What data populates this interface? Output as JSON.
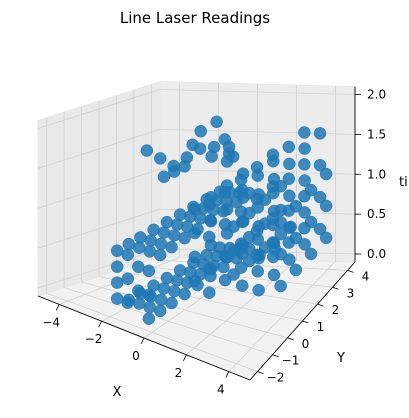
{
  "chart_data": {
    "type": "scatter",
    "projection": "3d",
    "title": "Line Laser Readings",
    "xlabel": "X",
    "ylabel": "Y",
    "zlabel": "ti",
    "xlim": [
      -5,
      5
    ],
    "ylim": [
      -2.5,
      4.5
    ],
    "zlim": [
      -0.1,
      2.1
    ],
    "xticks": [
      -4,
      -2,
      0,
      2,
      4
    ],
    "yticks": [
      -2,
      -1,
      0,
      1,
      2,
      3,
      4
    ],
    "zticks": [
      0.0,
      0.5,
      1.0,
      1.5,
      2.0
    ],
    "xtick_labels": [
      "−4",
      "−2",
      "0",
      "2",
      "4"
    ],
    "ytick_labels": [
      "−2",
      "−1",
      "0",
      "1",
      "2",
      "3",
      "4"
    ],
    "ztick_labels": [
      "0.0",
      "0.5",
      "1.0",
      "1.5",
      "2.0"
    ],
    "grid": true,
    "marker_color": "#1f77b4",
    "series": [
      {
        "points": [
          [
            -4.0,
            2.6,
            1.4
          ],
          [
            -3.5,
            2.8,
            1.3
          ],
          [
            -3.0,
            3.0,
            1.2
          ],
          [
            -2.5,
            3.2,
            1.3
          ],
          [
            -2.0,
            3.4,
            1.4
          ],
          [
            -1.5,
            3.5,
            1.3
          ],
          [
            -1.5,
            3.8,
            1.7
          ],
          [
            -1.0,
            3.7,
            1.5
          ],
          [
            -1.5,
            -2.2,
            0.8
          ],
          [
            -1.5,
            -2.2,
            0.6
          ],
          [
            -1.5,
            -2.2,
            0.4
          ],
          [
            -1.5,
            -2.2,
            0.2
          ],
          [
            -1.0,
            -2.2,
            0.8
          ],
          [
            -1.0,
            -2.2,
            0.5
          ],
          [
            -1.0,
            -2.2,
            0.2
          ],
          [
            -0.5,
            -2.2,
            0.7
          ],
          [
            -0.5,
            -2.2,
            0.4
          ],
          [
            0.0,
            -2.2,
            0.7
          ],
          [
            0.0,
            -2.2,
            0.4
          ],
          [
            0.0,
            -2.2,
            0.1
          ],
          [
            -1.5,
            -1.5,
            0.8
          ],
          [
            -1.0,
            -1.5,
            0.8
          ],
          [
            -0.5,
            -1.5,
            0.8
          ],
          [
            0.0,
            -1.5,
            0.8
          ],
          [
            -1.5,
            -1.5,
            0.1
          ],
          [
            -1.0,
            -1.5,
            0.1
          ],
          [
            -0.5,
            -1.5,
            0.1
          ],
          [
            0.0,
            -1.5,
            0.1
          ],
          [
            -1.5,
            -0.8,
            0.8
          ],
          [
            -1.0,
            -0.8,
            0.8
          ],
          [
            -0.5,
            -0.8,
            0.8
          ],
          [
            0.0,
            -0.8,
            0.8
          ],
          [
            -1.5,
            -0.8,
            0.1
          ],
          [
            -1.0,
            -0.8,
            0.1
          ],
          [
            -0.5,
            -0.8,
            0.1
          ],
          [
            0.0,
            -0.8,
            0.1
          ],
          [
            -1.5,
            0.0,
            0.8
          ],
          [
            -1.0,
            0.0,
            0.8
          ],
          [
            -0.5,
            0.0,
            0.8
          ],
          [
            0.0,
            0.0,
            0.8
          ],
          [
            -1.5,
            0.0,
            0.1
          ],
          [
            -1.0,
            0.0,
            0.1
          ],
          [
            -0.5,
            0.0,
            0.1
          ],
          [
            0.0,
            0.0,
            0.1
          ],
          [
            -1.5,
            0.8,
            0.8
          ],
          [
            -1.0,
            0.8,
            0.8
          ],
          [
            -0.5,
            0.8,
            0.8
          ],
          [
            0.0,
            0.8,
            0.8
          ],
          [
            -1.5,
            0.8,
            0.1
          ],
          [
            -1.0,
            0.8,
            0.1
          ],
          [
            -0.5,
            0.8,
            0.1
          ],
          [
            0.0,
            0.8,
            0.1
          ],
          [
            -1.5,
            1.6,
            0.8
          ],
          [
            -1.0,
            1.6,
            0.8
          ],
          [
            -0.5,
            1.6,
            0.8
          ],
          [
            0.0,
            1.6,
            0.8
          ],
          [
            -1.5,
            1.6,
            0.1
          ],
          [
            -1.0,
            1.6,
            0.1
          ],
          [
            -0.5,
            1.6,
            0.1
          ],
          [
            0.0,
            1.6,
            0.1
          ],
          [
            -1.5,
            2.4,
            0.8
          ],
          [
            -1.0,
            2.4,
            0.8
          ],
          [
            -0.5,
            2.4,
            0.8
          ],
          [
            0.0,
            2.4,
            0.8
          ],
          [
            -1.5,
            2.4,
            0.1
          ],
          [
            -1.0,
            2.4,
            0.1
          ],
          [
            -0.5,
            2.4,
            0.1
          ],
          [
            0.0,
            2.4,
            0.1
          ],
          [
            -1.5,
            3.2,
            0.8
          ],
          [
            -1.0,
            3.2,
            0.8
          ],
          [
            -0.5,
            3.2,
            0.8
          ],
          [
            0.0,
            3.2,
            0.8
          ],
          [
            -1.5,
            3.2,
            0.1
          ],
          [
            -1.0,
            3.2,
            0.1
          ],
          [
            -0.5,
            3.2,
            0.1
          ],
          [
            0.0,
            3.2,
            0.1
          ],
          [
            -1.5,
            4.0,
            0.8
          ],
          [
            -1.0,
            4.0,
            0.8
          ],
          [
            -0.5,
            4.0,
            0.8
          ],
          [
            0.0,
            4.0,
            0.8
          ],
          [
            -1.5,
            4.0,
            0.1
          ],
          [
            -1.0,
            4.0,
            0.1
          ],
          [
            -0.5,
            4.0,
            0.1
          ],
          [
            0.0,
            4.0,
            0.1
          ],
          [
            -1.0,
            0.0,
            1.5
          ],
          [
            -0.5,
            0.0,
            1.6
          ],
          [
            0.0,
            0.0,
            1.7
          ],
          [
            0.0,
            0.5,
            1.9
          ],
          [
            0.0,
            1.0,
            2.0
          ],
          [
            0.5,
            1.2,
            1.8
          ],
          [
            1.0,
            1.5,
            1.7
          ],
          [
            0.5,
            2.0,
            1.5
          ],
          [
            0.2,
            2.5,
            1.6
          ],
          [
            0.0,
            3.0,
            1.4
          ],
          [
            0.5,
            0.0,
            1.2
          ],
          [
            0.5,
            0.0,
            0.9
          ],
          [
            0.5,
            0.0,
            0.6
          ],
          [
            0.5,
            0.0,
            0.3
          ],
          [
            0.5,
            1.0,
            1.2
          ],
          [
            0.5,
            1.0,
            0.9
          ],
          [
            0.5,
            1.0,
            0.6
          ],
          [
            0.5,
            1.0,
            0.3
          ],
          [
            0.5,
            2.0,
            1.2
          ],
          [
            0.5,
            2.0,
            0.9
          ],
          [
            0.5,
            2.0,
            0.6
          ],
          [
            0.5,
            2.0,
            0.3
          ],
          [
            0.5,
            3.0,
            1.2
          ],
          [
            0.5,
            3.0,
            0.9
          ],
          [
            0.5,
            3.0,
            0.6
          ],
          [
            0.5,
            3.0,
            0.3
          ],
          [
            1.2,
            0.0,
            1.3
          ],
          [
            1.2,
            0.0,
            0.9
          ],
          [
            1.2,
            0.0,
            0.5
          ],
          [
            1.2,
            0.0,
            0.2
          ],
          [
            1.2,
            1.0,
            1.3
          ],
          [
            1.2,
            1.0,
            0.9
          ],
          [
            1.2,
            1.0,
            0.5
          ],
          [
            1.2,
            1.0,
            0.2
          ],
          [
            1.2,
            2.0,
            1.3
          ],
          [
            1.2,
            2.0,
            0.9
          ],
          [
            1.2,
            2.0,
            0.5
          ],
          [
            1.2,
            2.0,
            0.2
          ],
          [
            1.2,
            3.0,
            1.3
          ],
          [
            1.2,
            3.0,
            0.9
          ],
          [
            1.2,
            3.0,
            0.5
          ],
          [
            1.2,
            3.0,
            0.2
          ],
          [
            1.2,
            4.0,
            1.3
          ],
          [
            1.2,
            4.0,
            0.9
          ],
          [
            1.2,
            4.0,
            0.5
          ],
          [
            1.2,
            4.0,
            0.2
          ],
          [
            2.0,
            0.5,
            1.0
          ],
          [
            2.0,
            0.5,
            0.7
          ],
          [
            2.0,
            0.5,
            0.4
          ],
          [
            2.0,
            1.5,
            1.0
          ],
          [
            2.0,
            1.5,
            0.7
          ],
          [
            2.0,
            1.5,
            0.4
          ],
          [
            2.0,
            2.5,
            1.0
          ],
          [
            2.0,
            2.5,
            0.7
          ],
          [
            2.0,
            2.5,
            0.4
          ],
          [
            2.0,
            3.5,
            1.0
          ],
          [
            2.0,
            3.5,
            0.7
          ],
          [
            2.0,
            3.5,
            0.4
          ],
          [
            2.5,
            1.5,
            0.5
          ],
          [
            2.5,
            2.5,
            0.4
          ],
          [
            2.5,
            3.5,
            0.5
          ],
          [
            2.8,
            0.0,
            1.6
          ],
          [
            2.8,
            0.0,
            1.2
          ],
          [
            2.8,
            0.0,
            0.8
          ],
          [
            2.8,
            0.0,
            0.4
          ],
          [
            2.8,
            1.0,
            1.6
          ],
          [
            2.8,
            1.0,
            1.2
          ],
          [
            2.8,
            1.0,
            0.8
          ],
          [
            2.8,
            1.0,
            0.4
          ],
          [
            2.8,
            2.0,
            1.6
          ],
          [
            2.8,
            2.0,
            1.2
          ],
          [
            2.8,
            2.0,
            0.8
          ],
          [
            2.8,
            2.0,
            0.4
          ],
          [
            2.8,
            3.0,
            1.6
          ],
          [
            2.8,
            3.0,
            1.2
          ],
          [
            2.8,
            3.0,
            0.8
          ],
          [
            2.8,
            3.0,
            0.4
          ],
          [
            2.8,
            4.0,
            1.6
          ],
          [
            2.8,
            4.0,
            1.2
          ],
          [
            2.8,
            4.0,
            0.8
          ],
          [
            2.8,
            4.0,
            0.4
          ],
          [
            3.6,
            0.0,
            1.6
          ],
          [
            3.6,
            0.0,
            1.2
          ],
          [
            3.6,
            0.0,
            0.8
          ],
          [
            3.6,
            0.0,
            0.4
          ],
          [
            3.6,
            1.0,
            1.6
          ],
          [
            3.6,
            1.0,
            1.2
          ],
          [
            3.6,
            1.0,
            0.8
          ],
          [
            3.6,
            1.0,
            0.4
          ],
          [
            3.6,
            2.0,
            1.6
          ],
          [
            3.6,
            2.0,
            1.2
          ],
          [
            3.6,
            2.0,
            0.8
          ],
          [
            3.6,
            2.0,
            0.4
          ],
          [
            3.6,
            3.0,
            1.6
          ],
          [
            3.6,
            3.0,
            1.2
          ],
          [
            3.6,
            3.0,
            0.8
          ],
          [
            3.6,
            3.0,
            0.4
          ],
          [
            3.6,
            4.0,
            1.6
          ],
          [
            3.6,
            4.0,
            1.2
          ],
          [
            3.6,
            4.0,
            0.8
          ],
          [
            3.6,
            4.0,
            0.4
          ],
          [
            4.3,
            0.5,
            1.2
          ],
          [
            4.3,
            0.5,
            0.8
          ],
          [
            4.3,
            0.5,
            0.4
          ],
          [
            4.3,
            1.5,
            1.2
          ],
          [
            4.3,
            1.5,
            0.8
          ],
          [
            4.3,
            1.5,
            0.4
          ],
          [
            4.3,
            2.5,
            1.2
          ],
          [
            4.3,
            2.5,
            0.8
          ],
          [
            4.3,
            2.5,
            0.4
          ],
          [
            4.3,
            3.5,
            1.2
          ],
          [
            4.3,
            3.5,
            0.8
          ],
          [
            4.3,
            3.5,
            0.4
          ]
        ]
      }
    ]
  }
}
